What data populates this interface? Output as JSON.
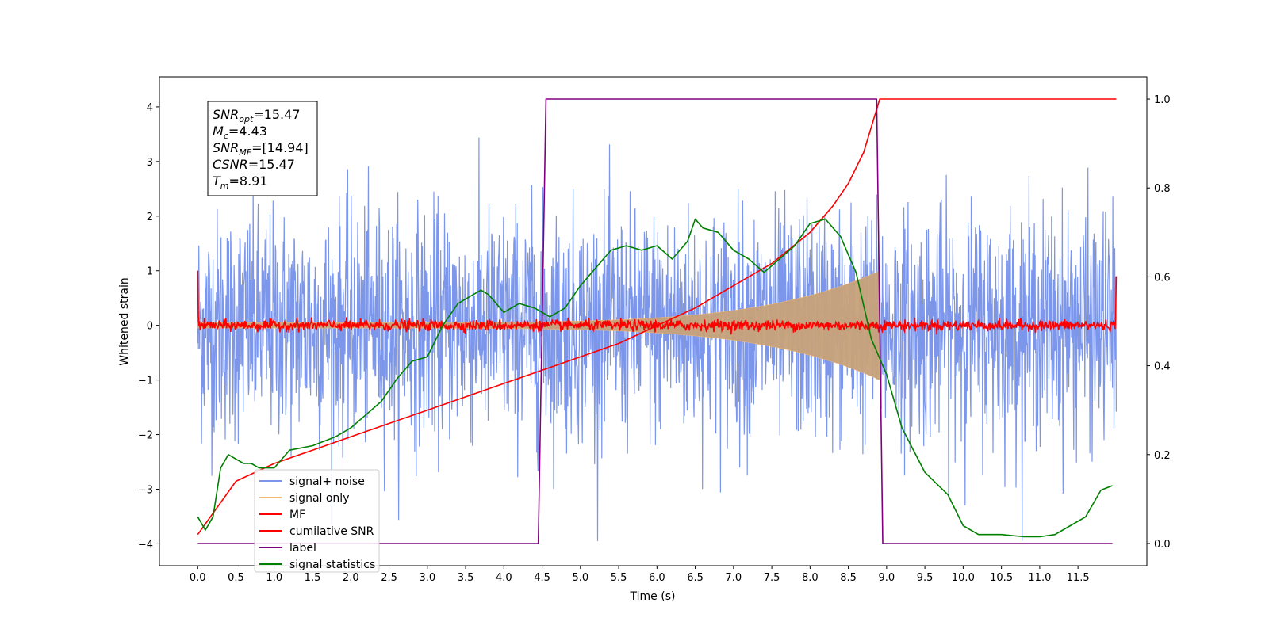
{
  "chart_data": {
    "type": "line",
    "xlabel": "Time (s)",
    "ylabel": "Whitened strain",
    "xlim": [
      -0.5,
      12.4
    ],
    "ylim": [
      -4.4,
      4.55
    ],
    "ylim_right": [
      -0.05,
      1.05
    ],
    "x_ticks": [
      "0.0",
      "0.5",
      "1.0",
      "1.5",
      "2.0",
      "2.5",
      "3.0",
      "3.5",
      "4.0",
      "4.5",
      "5.0",
      "5.5",
      "6.0",
      "6.5",
      "7.0",
      "7.5",
      "8.0",
      "8.5",
      "9.0",
      "9.5",
      "10.0",
      "10.5",
      "11.0",
      "11.5"
    ],
    "y_ticks": [
      "−4",
      "−3",
      "−2",
      "−1",
      "0",
      "1",
      "2",
      "3",
      "4"
    ],
    "y_ticks_right": [
      "0.0",
      "0.2",
      "0.4",
      "0.6",
      "0.8",
      "1.0"
    ],
    "info_box": [
      {
        "main": "SNR",
        "sub": "opt",
        "rest": "=15.47"
      },
      {
        "main": "M",
        "sub": "c",
        "rest": "=4.43"
      },
      {
        "main": "SNR",
        "sub": "MF",
        "rest": "=[14.94]"
      },
      {
        "main": "CSNR",
        "sub": "",
        "rest": "=15.47"
      },
      {
        "main": "T",
        "sub": "m",
        "rest": "=8.91"
      }
    ],
    "legend_position": "lower-left",
    "colors": {
      "signal_noise": "#7b96ea",
      "signal_only": "#f4b872",
      "mf": "#ff0000",
      "cumulative_snr": "#ff0000",
      "label": "#800080",
      "signal_statistics": "#008000"
    },
    "series": [
      {
        "name": "signal+ noise",
        "axis": "left",
        "description_kind": "noise_envelope",
        "x_range": [
          0.0,
          12.0
        ],
        "typical_amplitude": 1.0,
        "peak_max": 4.2,
        "peak_min": -3.95
      },
      {
        "name": "signal only",
        "axis": "left",
        "description_kind": "chirp_envelope",
        "x_range": [
          0.0,
          8.91
        ],
        "amplitude_start": 0.05,
        "amplitude_end": 1.0
      },
      {
        "name": "MF",
        "axis": "left",
        "description_kind": "mf_noise",
        "x_range": [
          0.0,
          12.0
        ],
        "start_value": 1.0,
        "end_value": 0.9,
        "typical_amplitude": 0.05
      },
      {
        "name": "cumilative SNR",
        "axis": "right",
        "x": [
          0.0,
          0.5,
          1.0,
          1.5,
          2.0,
          2.5,
          3.0,
          3.5,
          4.0,
          4.5,
          5.0,
          5.5,
          6.0,
          6.5,
          7.0,
          7.5,
          8.0,
          8.3,
          8.5,
          8.7,
          8.91,
          8.92,
          12.0
        ],
        "values": [
          0.02,
          0.14,
          0.18,
          0.21,
          0.24,
          0.27,
          0.3,
          0.33,
          0.36,
          0.39,
          0.42,
          0.45,
          0.49,
          0.53,
          0.58,
          0.63,
          0.7,
          0.76,
          0.81,
          0.88,
          1.0,
          1.0,
          1.0
        ]
      },
      {
        "name": "label",
        "axis": "right",
        "x": [
          0.0,
          4.45,
          4.55,
          8.87,
          8.95,
          11.95
        ],
        "values": [
          0.0,
          0.0,
          1.0,
          1.0,
          0.0,
          0.0
        ]
      },
      {
        "name": "signal statistics",
        "axis": "right",
        "x": [
          0.0,
          0.1,
          0.2,
          0.3,
          0.4,
          0.5,
          0.6,
          0.7,
          0.8,
          1.0,
          1.2,
          1.5,
          1.8,
          2.0,
          2.2,
          2.4,
          2.6,
          2.8,
          3.0,
          3.2,
          3.4,
          3.6,
          3.7,
          3.8,
          4.0,
          4.2,
          4.4,
          4.5,
          4.6,
          4.8,
          5.0,
          5.2,
          5.4,
          5.6,
          5.8,
          6.0,
          6.2,
          6.4,
          6.5,
          6.6,
          6.8,
          7.0,
          7.2,
          7.4,
          7.6,
          7.8,
          8.0,
          8.2,
          8.4,
          8.5,
          8.6,
          8.8,
          9.0,
          9.2,
          9.5,
          9.8,
          10.0,
          10.2,
          10.5,
          10.8,
          11.0,
          11.2,
          11.4,
          11.6,
          11.8,
          11.95
        ],
        "values": [
          0.06,
          0.03,
          0.06,
          0.17,
          0.2,
          0.19,
          0.18,
          0.18,
          0.17,
          0.17,
          0.21,
          0.22,
          0.24,
          0.26,
          0.29,
          0.32,
          0.37,
          0.41,
          0.42,
          0.49,
          0.54,
          0.56,
          0.57,
          0.56,
          0.52,
          0.54,
          0.53,
          0.52,
          0.51,
          0.53,
          0.58,
          0.62,
          0.66,
          0.67,
          0.66,
          0.67,
          0.64,
          0.68,
          0.73,
          0.71,
          0.7,
          0.66,
          0.64,
          0.61,
          0.64,
          0.67,
          0.72,
          0.73,
          0.69,
          0.65,
          0.61,
          0.46,
          0.38,
          0.26,
          0.16,
          0.11,
          0.04,
          0.02,
          0.02,
          0.015,
          0.015,
          0.02,
          0.04,
          0.06,
          0.12,
          0.13
        ]
      }
    ]
  }
}
